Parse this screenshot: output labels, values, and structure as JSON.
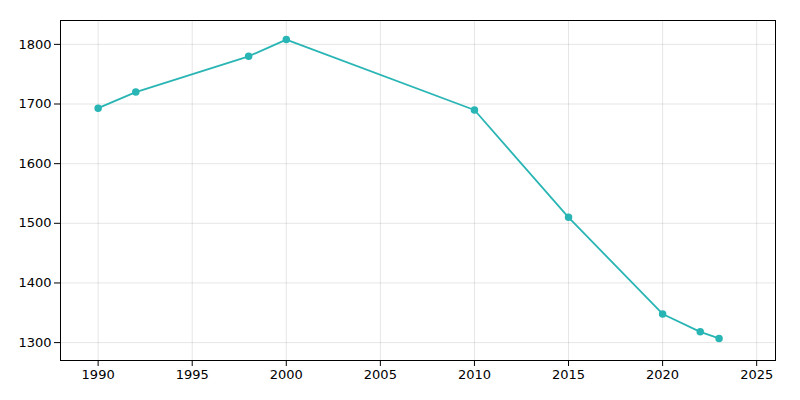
{
  "chart_data": {
    "type": "line",
    "x": [
      1990,
      1992,
      1998,
      2000,
      2010,
      2015,
      2020,
      2022,
      2023
    ],
    "values": [
      1693,
      1720,
      1780,
      1808,
      1690,
      1510,
      1348,
      1318,
      1307
    ],
    "color": "#2ab5b5",
    "marker": "circle",
    "xlim": [
      1988,
      2026
    ],
    "ylim": [
      1270,
      1840
    ],
    "xticks": [
      1990,
      1995,
      2000,
      2005,
      2010,
      2015,
      2020,
      2025
    ],
    "yticks": [
      1300,
      1400,
      1500,
      1600,
      1700,
      1800
    ],
    "grid": true
  }
}
